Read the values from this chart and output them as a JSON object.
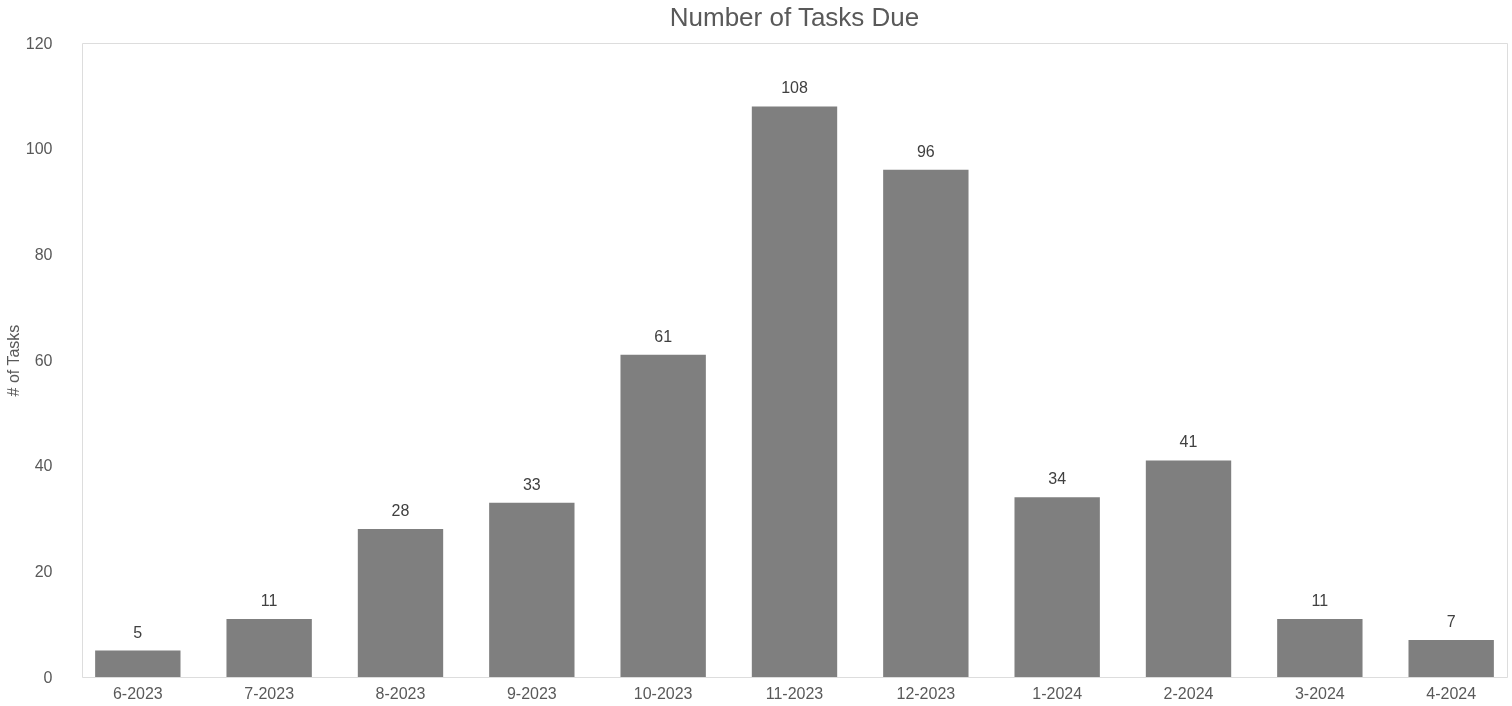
{
  "chart_data": {
    "type": "bar",
    "title": "Number of Tasks Due",
    "ylabel": "# of Tasks",
    "categories": [
      "6-2023",
      "7-2023",
      "8-2023",
      "9-2023",
      "10-2023",
      "11-2023",
      "12-2023",
      "1-2024",
      "2-2024",
      "3-2024",
      "4-2024"
    ],
    "values": [
      5,
      11,
      28,
      33,
      61,
      108,
      96,
      34,
      41,
      11,
      7
    ],
    "color": "#7f7f7f",
    "ylim": [
      0,
      120
    ],
    "yticks": [
      0,
      20,
      40,
      60,
      80,
      100,
      120
    ],
    "grid": false,
    "data_labels": true
  }
}
